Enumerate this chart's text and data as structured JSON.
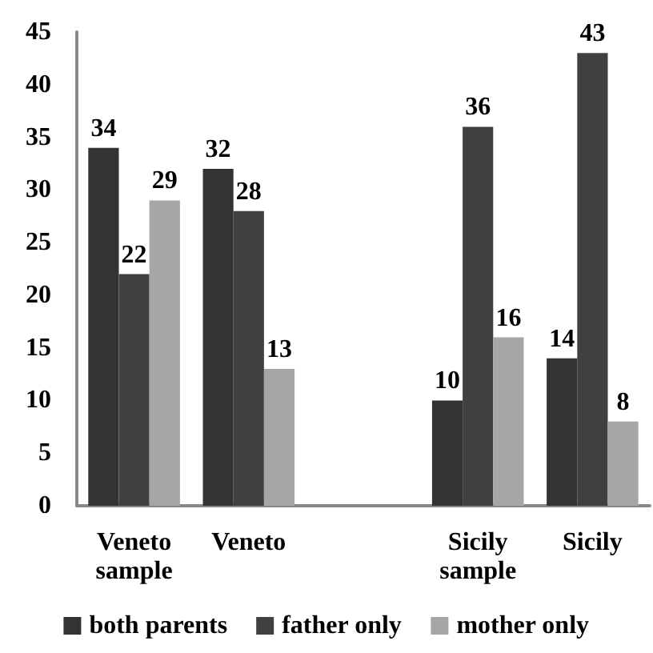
{
  "chart_data": {
    "type": "bar",
    "categories": [
      "Veneto\nsample",
      "Veneto",
      null,
      "Sicily\nsample",
      "Sicily"
    ],
    "series": [
      {
        "name": "both parents",
        "color": "#333333",
        "values": [
          34,
          32,
          null,
          10,
          14
        ]
      },
      {
        "name": "father only",
        "color": "#404040",
        "values": [
          22,
          28,
          null,
          36,
          43
        ]
      },
      {
        "name": "mother only",
        "color": "#a6a6a6",
        "values": [
          29,
          13,
          null,
          16,
          8
        ]
      }
    ],
    "ylim": [
      0,
      45
    ],
    "yticks": [
      0,
      5,
      10,
      15,
      20,
      25,
      30,
      35,
      40,
      45
    ],
    "data_labels": true,
    "grid": false,
    "legend": "bottom"
  }
}
